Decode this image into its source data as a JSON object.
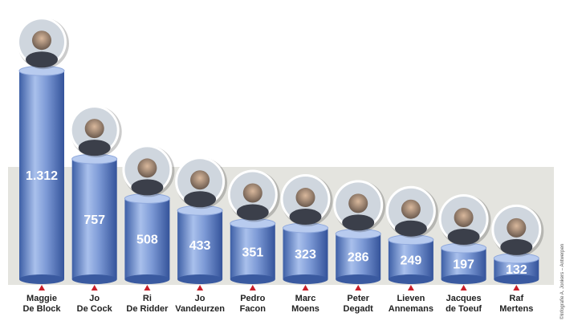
{
  "chart_data": {
    "type": "cylinder-bar",
    "categories": [
      "Maggie\nDe Block",
      "Jo\nDe Cock",
      "Ri\nDe Ridder",
      "Jo\nVandeurzen",
      "Pedro\nFacon",
      "Marc\nMoens",
      "Peter\nDegadt",
      "Lieven\nAnnemans",
      "Jacques\nde Toeuf",
      "Raf\nMertens"
    ],
    "values": [
      1312,
      757,
      508,
      433,
      351,
      323,
      286,
      249,
      197,
      132
    ],
    "value_labels": [
      "1.312",
      "757",
      "508",
      "433",
      "351",
      "323",
      "286",
      "249",
      "197",
      "132"
    ],
    "color": "#6f8fcf",
    "credit": "©Infografie A. Jonkers – Antwerpen"
  }
}
